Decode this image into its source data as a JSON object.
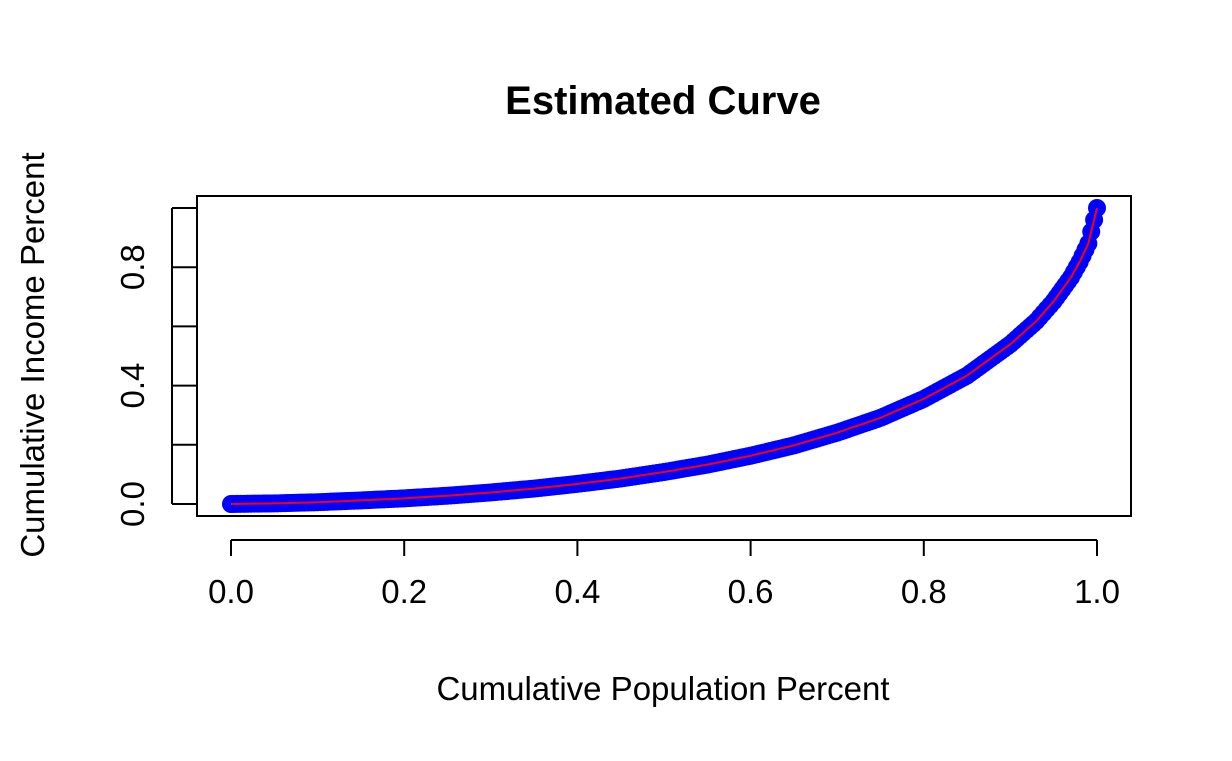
{
  "chart_data": {
    "type": "line",
    "title": "Estimated Curve",
    "xlabel": "Cumulative Population Percent",
    "ylabel": "Cumulative Income Percent",
    "xlim": [
      0.0,
      1.0
    ],
    "ylim": [
      0.0,
      1.0
    ],
    "x_ticks": [
      0.0,
      0.2,
      0.4,
      0.6,
      0.8,
      1.0
    ],
    "x_tick_labels": [
      "0.0",
      "0.2",
      "0.4",
      "0.6",
      "0.8",
      "1.0"
    ],
    "y_ticks": [
      0.0,
      0.2,
      0.4,
      0.6,
      0.8,
      1.0
    ],
    "y_tick_labels": [
      "0.0",
      "",
      "0.4",
      "",
      "0.8",
      ""
    ],
    "grid": false,
    "series": [
      {
        "style": "points",
        "color": "#0000ff",
        "x": [
          0.0,
          0.05,
          0.1,
          0.15,
          0.2,
          0.25,
          0.3,
          0.35,
          0.4,
          0.45,
          0.5,
          0.55,
          0.6,
          0.65,
          0.7,
          0.75,
          0.8,
          0.85,
          0.9,
          0.93,
          0.95,
          0.97,
          0.98,
          0.99,
          1.0
        ],
        "y": [
          0.0,
          0.002,
          0.006,
          0.012,
          0.019,
          0.028,
          0.039,
          0.052,
          0.068,
          0.086,
          0.108,
          0.133,
          0.163,
          0.198,
          0.241,
          0.291,
          0.355,
          0.434,
          0.54,
          0.618,
          0.685,
          0.766,
          0.818,
          0.88,
          1.0
        ]
      },
      {
        "style": "line",
        "color": "#ff0000",
        "x": [
          0.0,
          0.05,
          0.1,
          0.15,
          0.2,
          0.25,
          0.3,
          0.35,
          0.4,
          0.45,
          0.5,
          0.55,
          0.6,
          0.65,
          0.7,
          0.75,
          0.8,
          0.85,
          0.9,
          0.93,
          0.95,
          0.97,
          0.98,
          0.99,
          1.0
        ],
        "y": [
          0.0,
          0.002,
          0.006,
          0.012,
          0.019,
          0.028,
          0.039,
          0.052,
          0.068,
          0.086,
          0.108,
          0.133,
          0.163,
          0.198,
          0.241,
          0.291,
          0.355,
          0.434,
          0.54,
          0.618,
          0.685,
          0.766,
          0.818,
          0.88,
          1.0
        ]
      }
    ]
  }
}
